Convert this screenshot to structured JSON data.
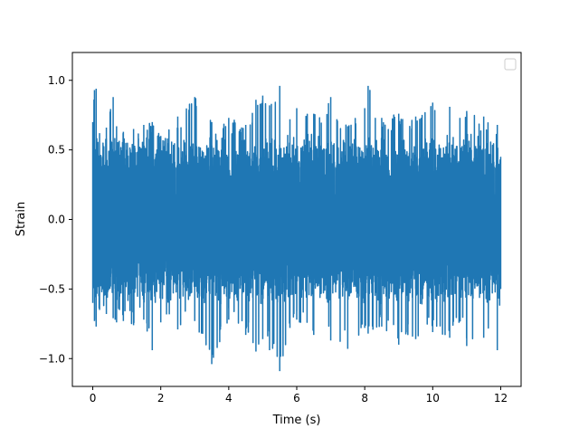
{
  "chart_data": {
    "type": "line",
    "title": "",
    "xlabel": "Time (s)",
    "ylabel": "Strain",
    "xlim": [
      -0.6,
      12.6
    ],
    "ylim": [
      -1.2,
      1.2
    ],
    "x_ticks": [
      0,
      2,
      4,
      6,
      8,
      10,
      12
    ],
    "x_tick_labels": [
      "0",
      "2",
      "4",
      "6",
      "8",
      "10",
      "12"
    ],
    "y_ticks": [
      -1.0,
      -0.5,
      0.0,
      0.5,
      1.0
    ],
    "y_tick_labels": [
      "−1.0",
      "−0.5",
      "0.0",
      "0.5",
      "1.0"
    ],
    "grid": false,
    "legend": {
      "visible": true,
      "location": "upper right",
      "entries": []
    },
    "series": [
      {
        "color": "#1f77b4",
        "x_range": [
          0,
          12
        ],
        "typical_range": [
          -0.62,
          0.62
        ],
        "envelope": {
          "x": [
            0.0,
            0.05,
            0.1,
            0.2,
            0.4,
            0.6,
            0.7,
            0.9,
            1.2,
            1.5,
            1.75,
            2.0,
            2.5,
            3.0,
            3.5,
            4.0,
            4.5,
            4.8,
            5.0,
            5.2,
            5.5,
            5.8,
            6.0,
            6.5,
            7.0,
            7.5,
            8.0,
            8.1,
            8.5,
            9.0,
            9.5,
            10.0,
            10.5,
            10.8,
            11.0,
            11.5,
            11.9,
            12.0
          ],
          "max": [
            0.7,
            0.93,
            0.94,
            0.62,
            0.66,
            0.88,
            0.67,
            0.63,
            0.65,
            0.68,
            0.7,
            0.6,
            0.74,
            0.88,
            0.7,
            0.73,
            0.68,
            0.86,
            0.89,
            0.82,
            0.96,
            0.72,
            0.8,
            0.76,
            0.88,
            0.67,
            0.8,
            0.96,
            0.73,
            0.76,
            0.74,
            0.84,
            0.81,
            0.73,
            0.78,
            0.74,
            0.68,
            0.45
          ],
          "min": [
            -0.6,
            -0.73,
            -0.77,
            -0.65,
            -0.68,
            -0.71,
            -0.74,
            -0.73,
            -0.76,
            -0.72,
            -0.94,
            -0.74,
            -0.79,
            -0.73,
            -1.04,
            -0.72,
            -0.83,
            -0.95,
            -0.86,
            -0.94,
            -1.09,
            -0.78,
            -0.72,
            -0.83,
            -0.87,
            -0.93,
            -0.78,
            -0.82,
            -0.77,
            -0.9,
            -0.86,
            -0.81,
            -0.85,
            -0.73,
            -0.91,
            -0.85,
            -0.94,
            -0.5
          ]
        }
      }
    ]
  }
}
